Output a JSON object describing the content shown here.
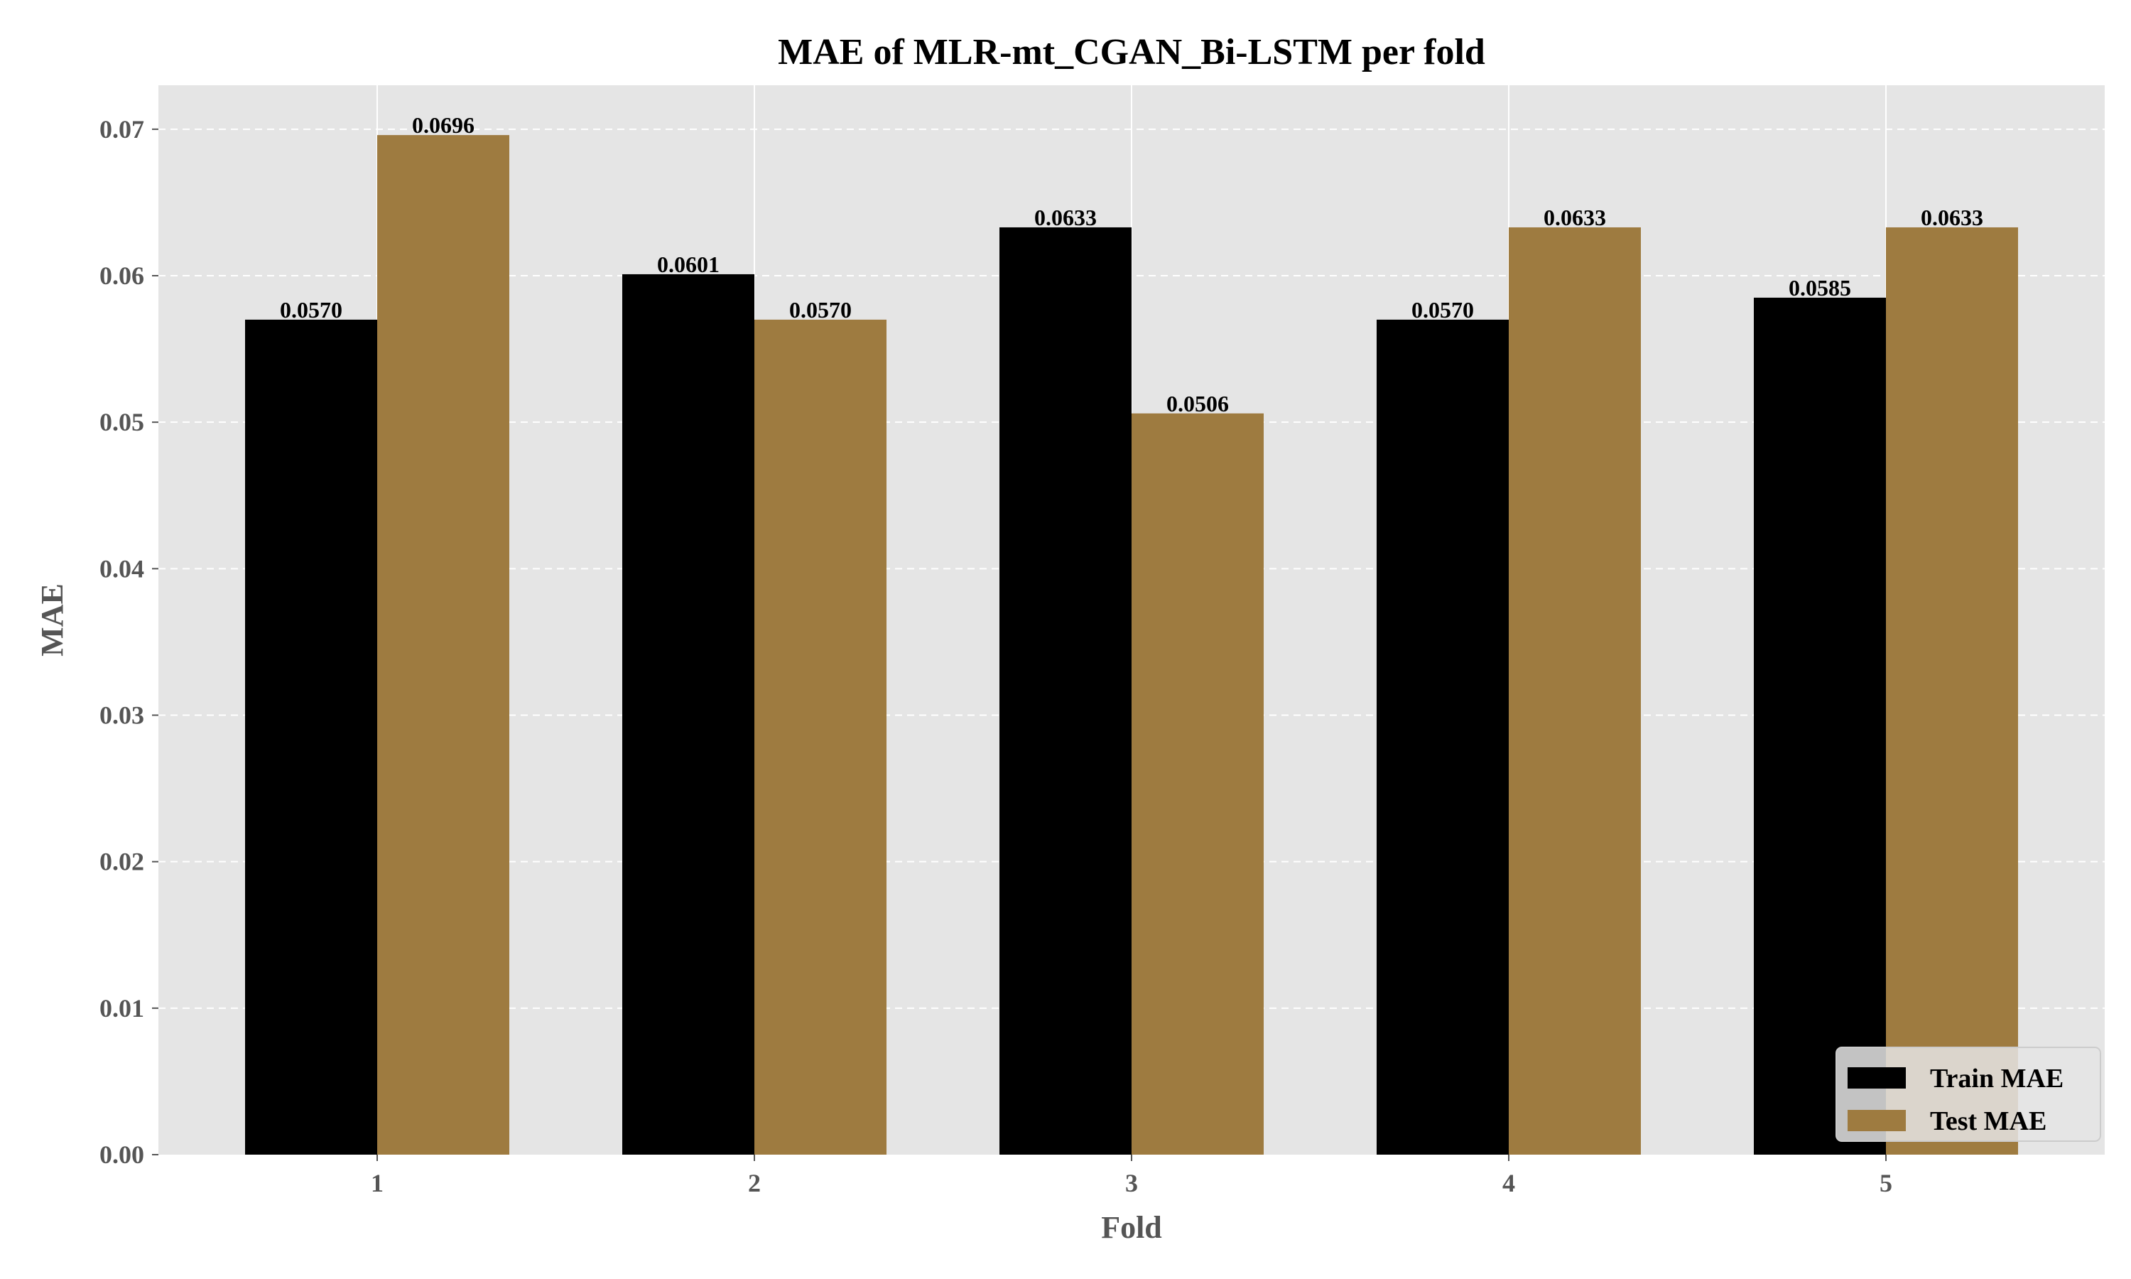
{
  "chart_data": {
    "type": "bar",
    "title": "MAE of MLR-mt_CGAN_Bi-LSTM per fold",
    "xlabel": "Fold",
    "ylabel": "MAE",
    "categories": [
      "1",
      "2",
      "3",
      "4",
      "5"
    ],
    "series": [
      {
        "name": "Train MAE",
        "color": "#000000",
        "values": [
          0.057,
          0.0601,
          0.0633,
          0.057,
          0.0585
        ],
        "labels": [
          "0.0570",
          "0.0601",
          "0.0633",
          "0.0570",
          "0.0585"
        ]
      },
      {
        "name": "Test MAE",
        "color": "#9e7b40",
        "values": [
          0.0696,
          0.057,
          0.0506,
          0.0633,
          0.0633
        ],
        "labels": [
          "0.0696",
          "0.0570",
          "0.0506",
          "0.0633",
          "0.0633"
        ]
      }
    ],
    "ylim": [
      0,
      0.073
    ],
    "yticks": [
      "0.00",
      "0.01",
      "0.02",
      "0.03",
      "0.04",
      "0.05",
      "0.06",
      "0.07"
    ],
    "grid": true,
    "legend_position": "bottom-right",
    "plot_background": "#e5e5e5"
  }
}
